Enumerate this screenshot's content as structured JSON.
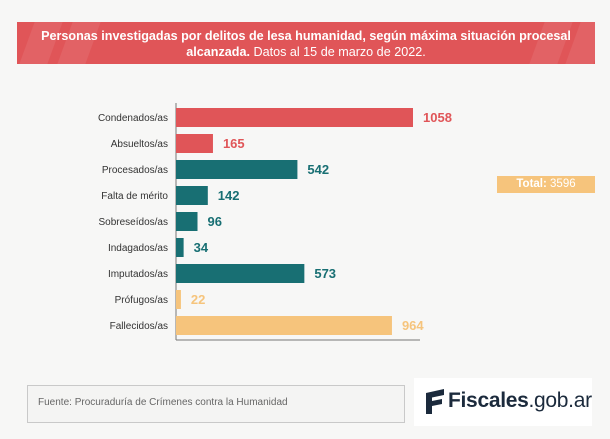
{
  "header": {
    "title_bold": "Personas investigadas por delitos de lesa humanidad, según máxima situación procesal alcanzada.",
    "title_normal": "Datos al 15 de marzo de 2022."
  },
  "total": {
    "label": "Total:",
    "value": "3596"
  },
  "source": {
    "text": "Fuente: Procuraduría de Crímenes contra la Humanidad"
  },
  "logo": {
    "main": "Fiscales",
    "suffix": ".gob.ar"
  },
  "colors": {
    "red": "#e05558",
    "teal": "#186f73",
    "orange": "#f6c47c",
    "banner": "#e05558"
  },
  "chart_data": {
    "type": "bar",
    "orientation": "horizontal",
    "categories": [
      "Condenados/as",
      "Absueltos/as",
      "Procesados/as",
      "Falta de mérito",
      "Sobreseídos/as",
      "Indagados/as",
      "Imputados/as",
      "Prófugos/as",
      "Fallecidos/as"
    ],
    "values": [
      1058,
      165,
      542,
      142,
      96,
      34,
      573,
      22,
      964
    ],
    "value_labels": [
      "1058",
      "165",
      "542",
      "142",
      "96",
      "34",
      "573",
      "22",
      "964"
    ],
    "bar_colors": [
      "#e05558",
      "#e05558",
      "#186f73",
      "#186f73",
      "#186f73",
      "#186f73",
      "#186f73",
      "#f6c47c",
      "#f6c47c"
    ],
    "xlim": [
      0,
      1058
    ]
  }
}
